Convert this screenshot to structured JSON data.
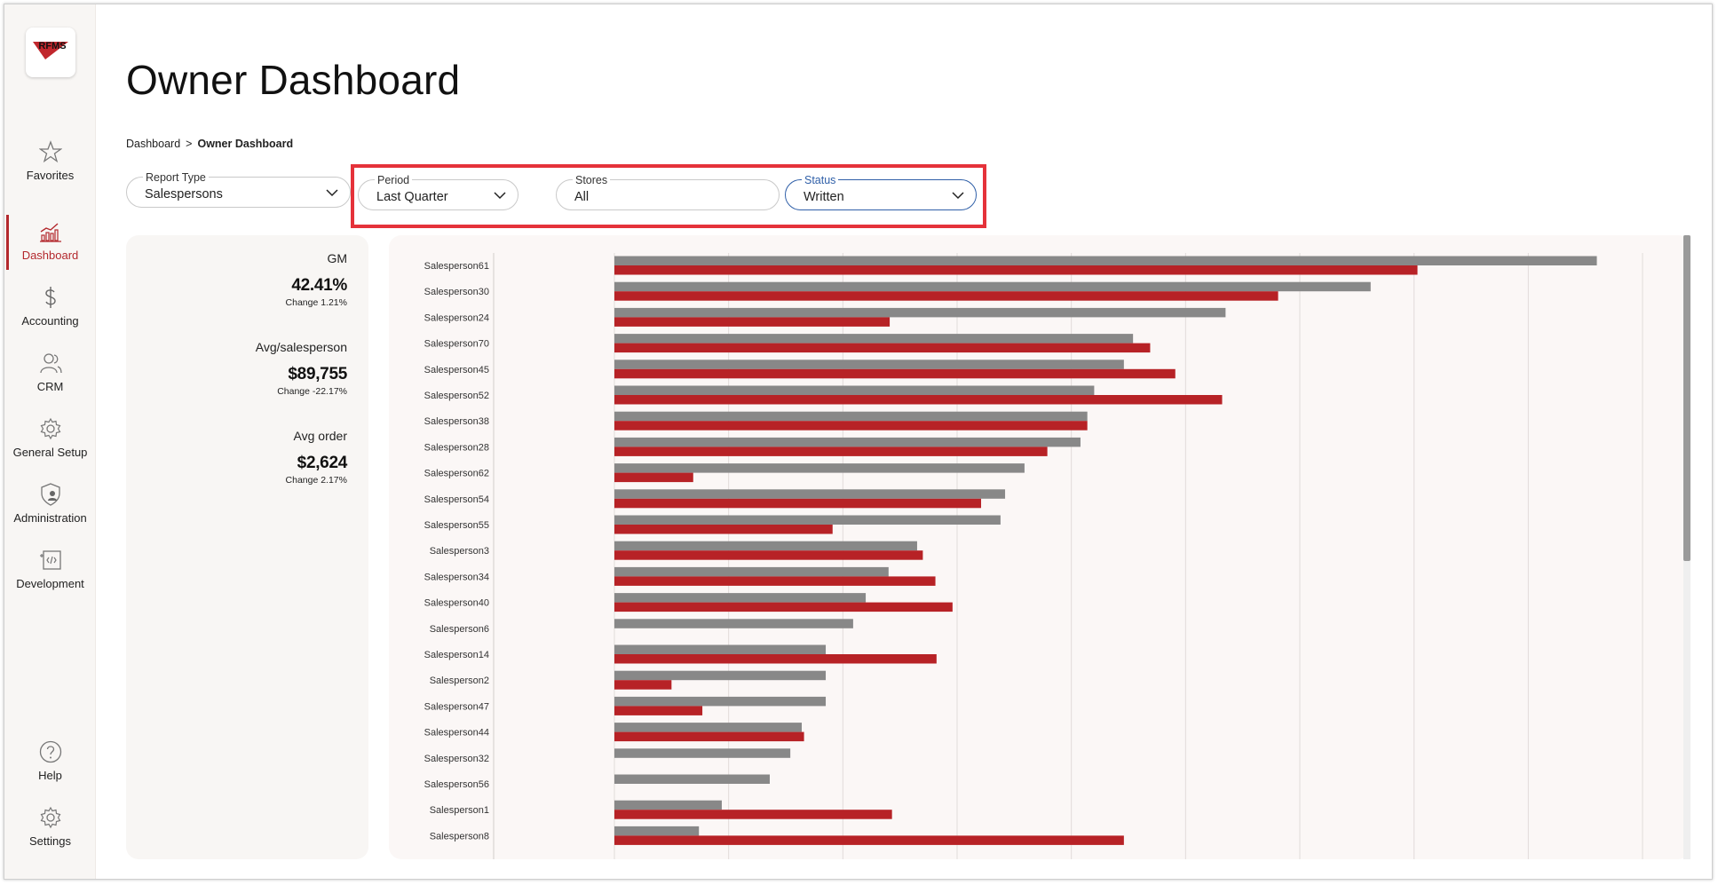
{
  "sidebar": {
    "logo_text": "RFMS",
    "items": [
      {
        "id": "favorites",
        "label": "Favorites",
        "icon": "star-icon"
      },
      {
        "id": "dashboard",
        "label": "Dashboard",
        "icon": "bar-chart-icon",
        "active": true
      },
      {
        "id": "accounting",
        "label": "Accounting",
        "icon": "dollar-icon"
      },
      {
        "id": "crm",
        "label": "CRM",
        "icon": "users-icon"
      },
      {
        "id": "general-setup",
        "label": "General Setup",
        "icon": "gear-icon"
      },
      {
        "id": "administration",
        "label": "Administration",
        "icon": "shield-user-icon"
      },
      {
        "id": "development",
        "label": "Development",
        "icon": "code-icon"
      }
    ],
    "bottom_items": [
      {
        "id": "help",
        "label": "Help",
        "icon": "question-icon"
      },
      {
        "id": "settings",
        "label": "Settings",
        "icon": "gear-icon"
      }
    ]
  },
  "page": {
    "title": "Owner Dashboard",
    "breadcrumb": {
      "root": "Dashboard",
      "separator": ">",
      "current": "Owner Dashboard"
    }
  },
  "filters": {
    "report_type": {
      "label": "Report Type",
      "value": "Salespersons"
    },
    "period": {
      "label": "Period",
      "value": "Last Quarter"
    },
    "stores": {
      "label": "Stores",
      "value": "All"
    },
    "status": {
      "label": "Status",
      "value": "Written"
    }
  },
  "kpis": [
    {
      "title": "GM",
      "value": "42.41%",
      "change": "Change 1.21%"
    },
    {
      "title": "Avg/salesperson",
      "value": "$89,755",
      "change": "Change -22.17%"
    },
    {
      "title": "Avg order",
      "value": "$2,624",
      "change": "Change 2.17%"
    }
  ],
  "colors": {
    "accent": "#b3282d",
    "series_gray": "#888888",
    "series_red": "#b72226",
    "highlight": "#e5323a",
    "focus": "#2f5fa8"
  },
  "chart_data": {
    "type": "bar",
    "orientation": "horizontal",
    "xlim": [
      0,
      9
    ],
    "grid": true,
    "categories": [
      "Salesperson61",
      "Salesperson30",
      "Salesperson24",
      "Salesperson70",
      "Salesperson45",
      "Salesperson52",
      "Salesperson38",
      "Salesperson28",
      "Salesperson62",
      "Salesperson54",
      "Salesperson55",
      "Salesperson3",
      "Salesperson34",
      "Salesperson40",
      "Salesperson6",
      "Salesperson14",
      "Salesperson2",
      "Salesperson47",
      "Salesperson44",
      "Salesperson32",
      "Salesperson56",
      "Salesperson1",
      "Salesperson8"
    ],
    "series": [
      {
        "values": [
          8.6,
          6.62,
          5.35,
          4.54,
          4.46,
          4.2,
          4.14,
          4.08,
          3.59,
          3.42,
          3.38,
          2.65,
          2.4,
          2.2,
          2.09,
          1.85,
          1.85,
          1.85,
          1.64,
          1.54,
          1.36,
          0.94,
          0.74
        ]
      },
      {
        "values": [
          7.03,
          5.81,
          2.41,
          4.69,
          4.91,
          5.32,
          4.14,
          3.79,
          0.69,
          3.21,
          1.91,
          2.7,
          2.81,
          2.96,
          0,
          2.82,
          0.5,
          0.77,
          1.66,
          0,
          0,
          2.43,
          4.46
        ]
      }
    ]
  }
}
